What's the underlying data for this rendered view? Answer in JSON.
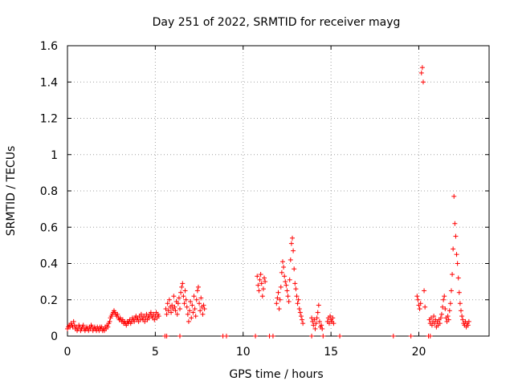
{
  "chart_data": {
    "type": "scatter",
    "title": "Day 251 of 2022, SRMTID for receiver mayg",
    "xlabel": "GPS time / hours",
    "ylabel": "SRMTID / TECUs",
    "xlim": [
      0,
      24
    ],
    "ylim": [
      0,
      1.6
    ],
    "grid": true,
    "marker": "+",
    "marker_color": "#ff0000",
    "xticks": [
      0,
      5,
      10,
      15,
      20
    ],
    "xtick_labels": [
      "0",
      "5",
      "10",
      "15",
      "20"
    ],
    "yticks": [
      0,
      0.2,
      0.4,
      0.6,
      0.8,
      1,
      1.2,
      1.4,
      1.6
    ],
    "ytick_labels": [
      "0",
      "0.2",
      "0.4",
      "0.6",
      "0.8",
      "1",
      "1.2",
      "1.4",
      "1.6"
    ],
    "series": [
      {
        "name": "SRMTID",
        "color": "#ff0000",
        "points": [
          [
            0.0,
            0.04
          ],
          [
            0.05,
            0.05
          ],
          [
            0.1,
            0.06
          ],
          [
            0.15,
            0.05
          ],
          [
            0.2,
            0.07
          ],
          [
            0.25,
            0.06
          ],
          [
            0.3,
            0.05
          ],
          [
            0.35,
            0.08
          ],
          [
            0.4,
            0.06
          ],
          [
            0.45,
            0.04
          ],
          [
            0.5,
            0.05
          ],
          [
            0.55,
            0.03
          ],
          [
            0.6,
            0.04
          ],
          [
            0.65,
            0.06
          ],
          [
            0.7,
            0.05
          ],
          [
            0.75,
            0.03
          ],
          [
            0.8,
            0.04
          ],
          [
            0.85,
            0.05
          ],
          [
            0.9,
            0.06
          ],
          [
            0.95,
            0.04
          ],
          [
            1.0,
            0.03
          ],
          [
            1.05,
            0.04
          ],
          [
            1.1,
            0.05
          ],
          [
            1.15,
            0.04
          ],
          [
            1.2,
            0.03
          ],
          [
            1.25,
            0.05
          ],
          [
            1.3,
            0.04
          ],
          [
            1.35,
            0.06
          ],
          [
            1.4,
            0.05
          ],
          [
            1.45,
            0.03
          ],
          [
            1.5,
            0.04
          ],
          [
            1.55,
            0.05
          ],
          [
            1.6,
            0.04
          ],
          [
            1.65,
            0.03
          ],
          [
            1.7,
            0.05
          ],
          [
            1.75,
            0.04
          ],
          [
            1.8,
            0.03
          ],
          [
            1.85,
            0.05
          ],
          [
            1.9,
            0.04
          ],
          [
            1.95,
            0.05
          ],
          [
            2.0,
            0.03
          ],
          [
            2.05,
            0.04
          ],
          [
            2.1,
            0.03
          ],
          [
            2.15,
            0.05
          ],
          [
            2.2,
            0.04
          ],
          [
            2.25,
            0.06
          ],
          [
            2.3,
            0.05
          ],
          [
            2.35,
            0.07
          ],
          [
            2.4,
            0.08
          ],
          [
            2.45,
            0.1
          ],
          [
            2.5,
            0.11
          ],
          [
            2.55,
            0.12
          ],
          [
            2.6,
            0.13
          ],
          [
            2.65,
            0.14
          ],
          [
            2.7,
            0.13
          ],
          [
            2.75,
            0.12
          ],
          [
            2.8,
            0.11
          ],
          [
            2.85,
            0.12
          ],
          [
            2.9,
            0.1
          ],
          [
            2.95,
            0.09
          ],
          [
            3.0,
            0.1
          ],
          [
            3.05,
            0.09
          ],
          [
            3.1,
            0.08
          ],
          [
            3.15,
            0.09
          ],
          [
            3.2,
            0.07
          ],
          [
            3.25,
            0.08
          ],
          [
            3.3,
            0.07
          ],
          [
            3.35,
            0.06
          ],
          [
            3.4,
            0.08
          ],
          [
            3.45,
            0.07
          ],
          [
            3.5,
            0.08
          ],
          [
            3.55,
            0.09
          ],
          [
            3.6,
            0.07
          ],
          [
            3.65,
            0.08
          ],
          [
            3.7,
            0.1
          ],
          [
            3.75,
            0.09
          ],
          [
            3.8,
            0.08
          ],
          [
            3.85,
            0.1
          ],
          [
            3.9,
            0.11
          ],
          [
            3.95,
            0.09
          ],
          [
            4.0,
            0.1
          ],
          [
            4.05,
            0.08
          ],
          [
            4.1,
            0.11
          ],
          [
            4.15,
            0.09
          ],
          [
            4.2,
            0.12
          ],
          [
            4.25,
            0.1
          ],
          [
            4.3,
            0.09
          ],
          [
            4.35,
            0.11
          ],
          [
            4.4,
            0.08
          ],
          [
            4.45,
            0.1
          ],
          [
            4.5,
            0.12
          ],
          [
            4.55,
            0.09
          ],
          [
            4.6,
            0.11
          ],
          [
            4.65,
            0.1
          ],
          [
            4.7,
            0.12
          ],
          [
            4.75,
            0.13
          ],
          [
            4.8,
            0.11
          ],
          [
            4.85,
            0.1
          ],
          [
            4.9,
            0.12
          ],
          [
            4.95,
            0.09
          ],
          [
            5.0,
            0.11
          ],
          [
            5.05,
            0.13
          ],
          [
            5.1,
            0.1
          ],
          [
            5.15,
            0.12
          ],
          [
            5.2,
            0.11
          ],
          [
            5.6,
            0.15
          ],
          [
            5.65,
            0.12
          ],
          [
            5.7,
            0.18
          ],
          [
            5.75,
            0.14
          ],
          [
            5.8,
            0.2
          ],
          [
            5.85,
            0.16
          ],
          [
            5.9,
            0.13
          ],
          [
            5.95,
            0.17
          ],
          [
            6.0,
            0.15
          ],
          [
            6.05,
            0.22
          ],
          [
            6.1,
            0.16
          ],
          [
            6.15,
            0.14
          ],
          [
            6.2,
            0.19
          ],
          [
            6.25,
            0.12
          ],
          [
            6.3,
            0.18
          ],
          [
            6.35,
            0.21
          ],
          [
            6.4,
            0.15
          ],
          [
            6.45,
            0.24
          ],
          [
            6.5,
            0.27
          ],
          [
            6.55,
            0.29
          ],
          [
            6.6,
            0.22
          ],
          [
            6.65,
            0.18
          ],
          [
            6.7,
            0.25
          ],
          [
            6.75,
            0.2
          ],
          [
            6.8,
            0.16
          ],
          [
            6.85,
            0.12
          ],
          [
            6.9,
            0.08
          ],
          [
            6.95,
            0.14
          ],
          [
            7.0,
            0.19
          ],
          [
            7.05,
            0.1
          ],
          [
            7.1,
            0.17
          ],
          [
            7.15,
            0.13
          ],
          [
            7.2,
            0.22
          ],
          [
            7.25,
            0.15
          ],
          [
            7.3,
            0.11
          ],
          [
            7.35,
            0.2
          ],
          [
            7.4,
            0.25
          ],
          [
            7.45,
            0.27
          ],
          [
            7.5,
            0.18
          ],
          [
            7.55,
            0.14
          ],
          [
            7.6,
            0.21
          ],
          [
            7.65,
            0.16
          ],
          [
            7.7,
            0.12
          ],
          [
            7.75,
            0.17
          ],
          [
            7.8,
            0.15
          ],
          [
            10.8,
            0.33
          ],
          [
            10.85,
            0.28
          ],
          [
            10.9,
            0.25
          ],
          [
            10.95,
            0.31
          ],
          [
            11.0,
            0.34
          ],
          [
            11.05,
            0.29
          ],
          [
            11.1,
            0.22
          ],
          [
            11.15,
            0.26
          ],
          [
            11.2,
            0.32
          ],
          [
            11.25,
            0.3
          ],
          [
            11.9,
            0.18
          ],
          [
            11.95,
            0.21
          ],
          [
            12.0,
            0.24
          ],
          [
            12.05,
            0.15
          ],
          [
            12.1,
            0.2
          ],
          [
            12.15,
            0.27
          ],
          [
            12.2,
            0.35
          ],
          [
            12.25,
            0.41
          ],
          [
            12.3,
            0.38
          ],
          [
            12.35,
            0.33
          ],
          [
            12.4,
            0.3
          ],
          [
            12.45,
            0.28
          ],
          [
            12.5,
            0.25
          ],
          [
            12.55,
            0.22
          ],
          [
            12.6,
            0.19
          ],
          [
            12.65,
            0.31
          ],
          [
            12.7,
            0.42
          ],
          [
            12.75,
            0.51
          ],
          [
            12.8,
            0.54
          ],
          [
            12.85,
            0.47
          ],
          [
            12.9,
            0.37
          ],
          [
            12.95,
            0.29
          ],
          [
            13.0,
            0.26
          ],
          [
            13.05,
            0.22
          ],
          [
            13.1,
            0.18
          ],
          [
            13.15,
            0.2
          ],
          [
            13.2,
            0.15
          ],
          [
            13.25,
            0.13
          ],
          [
            13.3,
            0.11
          ],
          [
            13.35,
            0.09
          ],
          [
            13.4,
            0.07
          ],
          [
            13.9,
            0.1
          ],
          [
            13.95,
            0.08
          ],
          [
            14.0,
            0.06
          ],
          [
            14.05,
            0.09
          ],
          [
            14.1,
            0.04
          ],
          [
            14.15,
            0.07
          ],
          [
            14.2,
            0.1
          ],
          [
            14.25,
            0.13
          ],
          [
            14.3,
            0.17
          ],
          [
            14.35,
            0.08
          ],
          [
            14.4,
            0.05
          ],
          [
            14.45,
            0.06
          ],
          [
            14.5,
            0.04
          ],
          [
            14.8,
            0.08
          ],
          [
            14.85,
            0.1
          ],
          [
            14.9,
            0.07
          ],
          [
            14.95,
            0.11
          ],
          [
            15.0,
            0.09
          ],
          [
            15.05,
            0.08
          ],
          [
            15.1,
            0.1
          ],
          [
            15.15,
            0.07
          ],
          [
            19.9,
            0.22
          ],
          [
            19.95,
            0.2
          ],
          [
            20.0,
            0.17
          ],
          [
            20.05,
            0.15
          ],
          [
            20.1,
            0.18
          ],
          [
            20.15,
            1.45
          ],
          [
            20.2,
            1.48
          ],
          [
            20.25,
            1.4
          ],
          [
            20.3,
            0.25
          ],
          [
            20.35,
            0.16
          ],
          [
            20.6,
            0.09
          ],
          [
            20.65,
            0.07
          ],
          [
            20.7,
            0.1
          ],
          [
            20.75,
            0.06
          ],
          [
            20.8,
            0.08
          ],
          [
            20.85,
            0.11
          ],
          [
            20.9,
            0.07
          ],
          [
            20.95,
            0.09
          ],
          [
            21.0,
            0.05
          ],
          [
            21.05,
            0.08
          ],
          [
            21.1,
            0.06
          ],
          [
            21.15,
            0.09
          ],
          [
            21.2,
            0.07
          ],
          [
            21.25,
            0.1
          ],
          [
            21.3,
            0.12
          ],
          [
            21.35,
            0.16
          ],
          [
            21.4,
            0.2
          ],
          [
            21.45,
            0.22
          ],
          [
            21.5,
            0.15
          ],
          [
            21.55,
            0.1
          ],
          [
            21.6,
            0.08
          ],
          [
            21.65,
            0.11
          ],
          [
            21.7,
            0.09
          ],
          [
            21.75,
            0.14
          ],
          [
            21.8,
            0.18
          ],
          [
            21.85,
            0.25
          ],
          [
            21.9,
            0.34
          ],
          [
            21.95,
            0.48
          ],
          [
            22.0,
            0.77
          ],
          [
            22.05,
            0.62
          ],
          [
            22.1,
            0.55
          ],
          [
            22.15,
            0.45
          ],
          [
            22.2,
            0.4
          ],
          [
            22.25,
            0.32
          ],
          [
            22.3,
            0.24
          ],
          [
            22.35,
            0.18
          ],
          [
            22.4,
            0.14
          ],
          [
            22.45,
            0.11
          ],
          [
            22.5,
            0.09
          ],
          [
            22.55,
            0.07
          ],
          [
            22.6,
            0.06
          ],
          [
            22.65,
            0.08
          ],
          [
            22.7,
            0.05
          ],
          [
            22.75,
            0.07
          ],
          [
            22.8,
            0.06
          ],
          [
            22.85,
            0.08
          ]
        ]
      }
    ],
    "zero_points_x": [
      5.55,
      5.65,
      6.4,
      8.85,
      9.05,
      10.7,
      11.5,
      11.7,
      13.9,
      14.55,
      15.5,
      18.55,
      19.55,
      20.55,
      20.65
    ]
  }
}
